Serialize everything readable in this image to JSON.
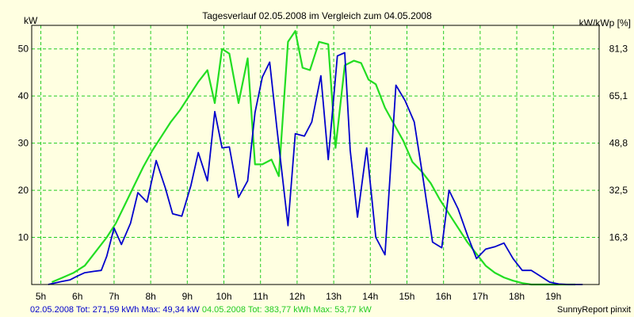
{
  "chart_data": {
    "type": "line",
    "title": "Tagesverlauf 02.05.2008 im Vergleich zum 04.05.2008",
    "left_axis_label": "kW",
    "right_axis_label": "kW/kWp [%]",
    "y_range": [
      0,
      55
    ],
    "x_range": [
      4.75,
      20.25
    ],
    "y_ticks": [
      10,
      20,
      30,
      40,
      50
    ],
    "right_ticks": [
      {
        "value": 10,
        "label": "16,3"
      },
      {
        "value": 20,
        "label": "32,5"
      },
      {
        "value": 30,
        "label": "48,8"
      },
      {
        "value": 40,
        "label": "65,1"
      },
      {
        "value": 50,
        "label": "81,3"
      }
    ],
    "x_ticks": [
      {
        "value": 5,
        "label": "5h"
      },
      {
        "value": 6,
        "label": "6h"
      },
      {
        "value": 7,
        "label": "7h"
      },
      {
        "value": 8,
        "label": "8h"
      },
      {
        "value": 9,
        "label": "9h"
      },
      {
        "value": 10,
        "label": "10h"
      },
      {
        "value": 11,
        "label": "11h"
      },
      {
        "value": 12,
        "label": "12h"
      },
      {
        "value": 13,
        "label": "13h"
      },
      {
        "value": 14,
        "label": "14h"
      },
      {
        "value": 15,
        "label": "15h"
      },
      {
        "value": 16,
        "label": "16h"
      },
      {
        "value": 17,
        "label": "17h"
      },
      {
        "value": 18,
        "label": "18h"
      },
      {
        "value": 19,
        "label": "19h"
      }
    ],
    "grid": true,
    "series": [
      {
        "name": "02.05.2008",
        "color": "#0000cc",
        "x": [
          5.2,
          5.55,
          5.8,
          6.0,
          6.2,
          6.45,
          6.65,
          6.8,
          7.0,
          7.2,
          7.45,
          7.65,
          7.9,
          8.15,
          8.4,
          8.6,
          8.85,
          9.1,
          9.3,
          9.55,
          9.75,
          9.95,
          10.15,
          10.4,
          10.65,
          10.85,
          11.05,
          11.25,
          11.45,
          11.75,
          11.95,
          12.2,
          12.4,
          12.65,
          12.85,
          13.1,
          13.3,
          13.45,
          13.65,
          13.9,
          14.15,
          14.4,
          14.7,
          14.95,
          15.2,
          15.45,
          15.7,
          15.95,
          16.15,
          16.4,
          16.65,
          16.9,
          17.15,
          17.4,
          17.65,
          17.9,
          18.15,
          18.4,
          18.6,
          18.9,
          19.15,
          19.4,
          19.6,
          19.8
        ],
        "values": [
          0,
          0.6,
          1.0,
          1.8,
          2.5,
          2.8,
          3.0,
          6.0,
          12.0,
          8.5,
          13.0,
          19.5,
          17.5,
          26.3,
          20.5,
          15.0,
          14.5,
          21.0,
          28.0,
          22.0,
          36.7,
          29.0,
          29.2,
          18.5,
          22.0,
          36.5,
          44.0,
          47.2,
          33.0,
          12.5,
          32.0,
          31.5,
          34.5,
          44.3,
          26.5,
          48.5,
          49.2,
          28.5,
          14.3,
          29.0,
          10.0,
          6.3,
          42.3,
          39.0,
          34.5,
          22.0,
          9.0,
          7.8,
          20.0,
          16.0,
          10.5,
          5.5,
          7.5,
          8.0,
          8.8,
          5.5,
          3.0,
          3.0,
          2.0,
          0.5,
          0.1,
          0,
          0,
          0
        ]
      },
      {
        "name": "04.05.2008",
        "color": "#22dd22",
        "x": [
          5.3,
          5.6,
          5.9,
          6.2,
          6.5,
          6.8,
          7.05,
          7.3,
          7.55,
          7.8,
          8.05,
          8.3,
          8.55,
          8.8,
          9.05,
          9.3,
          9.55,
          9.75,
          9.95,
          10.15,
          10.4,
          10.65,
          10.85,
          11.05,
          11.3,
          11.5,
          11.75,
          11.95,
          12.15,
          12.35,
          12.6,
          12.85,
          13.05,
          13.3,
          13.55,
          13.75,
          13.95,
          14.15,
          14.4,
          14.65,
          14.9,
          15.15,
          15.4,
          15.65,
          15.9,
          16.15,
          16.4,
          16.65,
          16.9,
          17.15,
          17.4,
          17.65,
          17.9,
          18.15,
          18.4,
          18.65,
          18.9,
          19.15,
          19.4,
          19.6
        ],
        "values": [
          0.5,
          1.5,
          2.5,
          4.0,
          7.0,
          10.0,
          13.0,
          17.0,
          21.0,
          25.0,
          28.5,
          31.5,
          34.5,
          37.0,
          40.0,
          43.0,
          45.5,
          38.5,
          50.0,
          49.0,
          38.5,
          48.0,
          25.5,
          25.5,
          26.5,
          23.0,
          51.5,
          53.8,
          46.0,
          45.5,
          51.5,
          51.0,
          29.0,
          46.5,
          47.5,
          47.0,
          43.5,
          42.5,
          37.5,
          34.0,
          30.5,
          26.0,
          24.0,
          21.5,
          18.0,
          15.0,
          12.0,
          9.0,
          6.5,
          4.0,
          2.5,
          1.5,
          0.8,
          0.3,
          0,
          0,
          0,
          0,
          0,
          0
        ]
      }
    ]
  },
  "footer": {
    "series1_label": "02.05.2008",
    "series1_stats": "Tot: 271,59 kWh Max: 49,34 kW",
    "series2_label": "04.05.2008",
    "series2_stats": "Tot: 383,77 kWh Max: 53,77 kW",
    "brand": "SunnyReport pinxit"
  }
}
